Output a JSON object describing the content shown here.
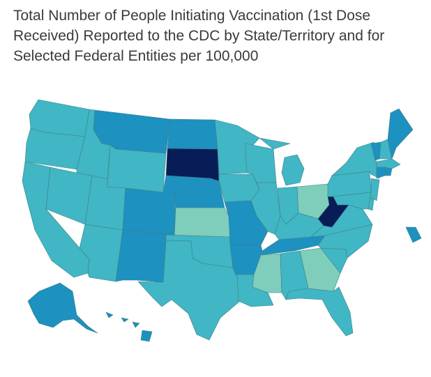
{
  "title_lines": [
    "Total Number of People Initiating Vaccination (1st Dose",
    "Received) Reported to the CDC by State/Territory and for",
    "Selected Federal Entities per 100,000"
  ],
  "colors": {
    "lightest": "#7fcdbb",
    "light": "#41b6c4",
    "medium": "#1d91c0",
    "dark": "#225ea8",
    "darkest": "#0c2c84",
    "deepest": "#081d58"
  },
  "states": [
    {
      "id": "WA",
      "level": "light"
    },
    {
      "id": "OR",
      "level": "light"
    },
    {
      "id": "CA",
      "level": "light"
    },
    {
      "id": "ID",
      "level": "light"
    },
    {
      "id": "NV",
      "level": "light"
    },
    {
      "id": "UT",
      "level": "light"
    },
    {
      "id": "AZ",
      "level": "light"
    },
    {
      "id": "MT",
      "level": "medium"
    },
    {
      "id": "WY",
      "level": "light"
    },
    {
      "id": "CO",
      "level": "medium"
    },
    {
      "id": "NM",
      "level": "medium"
    },
    {
      "id": "ND",
      "level": "medium"
    },
    {
      "id": "SD",
      "level": "deepest"
    },
    {
      "id": "NE",
      "level": "medium"
    },
    {
      "id": "KS",
      "level": "lightest"
    },
    {
      "id": "OK",
      "level": "light"
    },
    {
      "id": "TX",
      "level": "light"
    },
    {
      "id": "MN",
      "level": "light"
    },
    {
      "id": "IA",
      "level": "light"
    },
    {
      "id": "MO",
      "level": "medium"
    },
    {
      "id": "AR",
      "level": "medium"
    },
    {
      "id": "LA",
      "level": "light"
    },
    {
      "id": "WI",
      "level": "light"
    },
    {
      "id": "IL",
      "level": "light"
    },
    {
      "id": "MI",
      "level": "light"
    },
    {
      "id": "IN",
      "level": "light"
    },
    {
      "id": "OH",
      "level": "lightest"
    },
    {
      "id": "KY",
      "level": "light"
    },
    {
      "id": "TN",
      "level": "medium"
    },
    {
      "id": "MS",
      "level": "lightest"
    },
    {
      "id": "AL",
      "level": "light"
    },
    {
      "id": "GA",
      "level": "lightest"
    },
    {
      "id": "FL",
      "level": "light"
    },
    {
      "id": "SC",
      "level": "light"
    },
    {
      "id": "NC",
      "level": "light"
    },
    {
      "id": "VA",
      "level": "light"
    },
    {
      "id": "WV",
      "level": "deepest"
    },
    {
      "id": "PA",
      "level": "light"
    },
    {
      "id": "NY",
      "level": "light"
    },
    {
      "id": "VT",
      "level": "medium"
    },
    {
      "id": "NH",
      "level": "light"
    },
    {
      "id": "ME",
      "level": "medium"
    },
    {
      "id": "MA",
      "level": "light"
    },
    {
      "id": "CT",
      "level": "medium"
    },
    {
      "id": "RI",
      "level": "medium"
    },
    {
      "id": "NJ",
      "level": "light"
    },
    {
      "id": "DE",
      "level": "light"
    },
    {
      "id": "MD",
      "level": "light"
    },
    {
      "id": "AK",
      "level": "medium"
    },
    {
      "id": "HI",
      "level": "medium"
    },
    {
      "id": "PR",
      "level": "medium"
    }
  ]
}
